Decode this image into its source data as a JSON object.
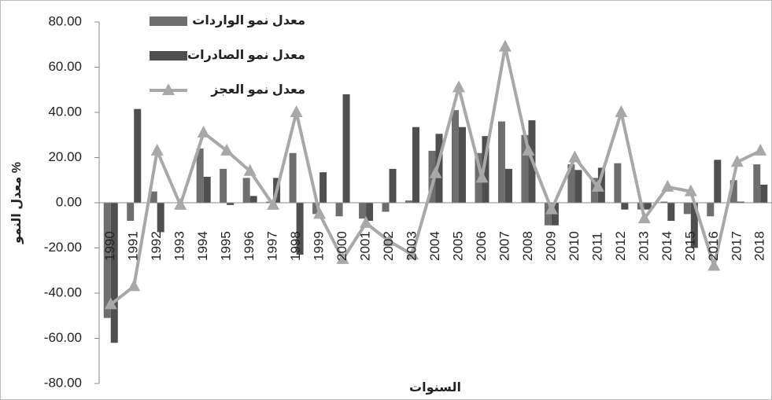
{
  "chart_data": {
    "type": "bar-line",
    "y_label": "معدل النمو %",
    "x_label": "السنوات",
    "categories": [
      "1990",
      "1991",
      "1992",
      "1993",
      "1994",
      "1995",
      "1996",
      "1997",
      "1998",
      "1999",
      "2000",
      "2001",
      "2002",
      "2003",
      "2004",
      "2005",
      "2006",
      "2007",
      "2008",
      "2009",
      "2010",
      "2011",
      "2012",
      "2013",
      "2014",
      "2015",
      "2016",
      "2017",
      "2018"
    ],
    "series": [
      {
        "name": "معدل نمو الواردات",
        "type": "bar",
        "color": "#6e6e6e",
        "values": [
          -51,
          -8,
          5,
          0,
          24,
          15,
          11,
          0.5,
          22,
          -5,
          -6,
          -7,
          -4,
          1,
          23,
          41,
          22,
          36,
          30,
          -10,
          17,
          11,
          17.5,
          -3,
          0.5,
          -5,
          -6,
          10,
          17
        ]
      },
      {
        "name": "معدل نمو الصادرات",
        "type": "bar",
        "color": "#4f4f4f",
        "values": [
          -62,
          41.5,
          -13,
          0,
          11.5,
          -1,
          3,
          11,
          -23,
          13.5,
          48,
          -8,
          15,
          33.5,
          30.5,
          33.5,
          29.5,
          15,
          36.5,
          -10,
          14.5,
          15.5,
          -3,
          -3,
          -8,
          -20,
          19,
          0.5,
          8
        ]
      },
      {
        "name": "معدل نمو العجز",
        "type": "line",
        "color": "#a8a8a8",
        "values": [
          -45,
          -37,
          23,
          -1,
          31,
          23,
          14,
          -1,
          40,
          -5,
          -25,
          -9,
          -17,
          -23,
          13,
          51,
          11,
          69,
          23,
          -3,
          20,
          7,
          40,
          -7,
          7,
          5,
          -28,
          18,
          23
        ]
      }
    ],
    "ylim": [
      -80,
      80
    ],
    "yticks": [
      {
        "value": -80,
        "label": "-80.00"
      },
      {
        "value": -60,
        "label": "-60.00"
      },
      {
        "value": -40,
        "label": "-40.00"
      },
      {
        "value": -20,
        "label": "-20.00"
      },
      {
        "value": 0,
        "label": "0.00"
      },
      {
        "value": 20,
        "label": "20.00"
      },
      {
        "value": 40,
        "label": "40.00"
      },
      {
        "value": 60,
        "label": "60.00"
      },
      {
        "value": 80,
        "label": "80.00"
      }
    ],
    "legend": "top-left"
  }
}
